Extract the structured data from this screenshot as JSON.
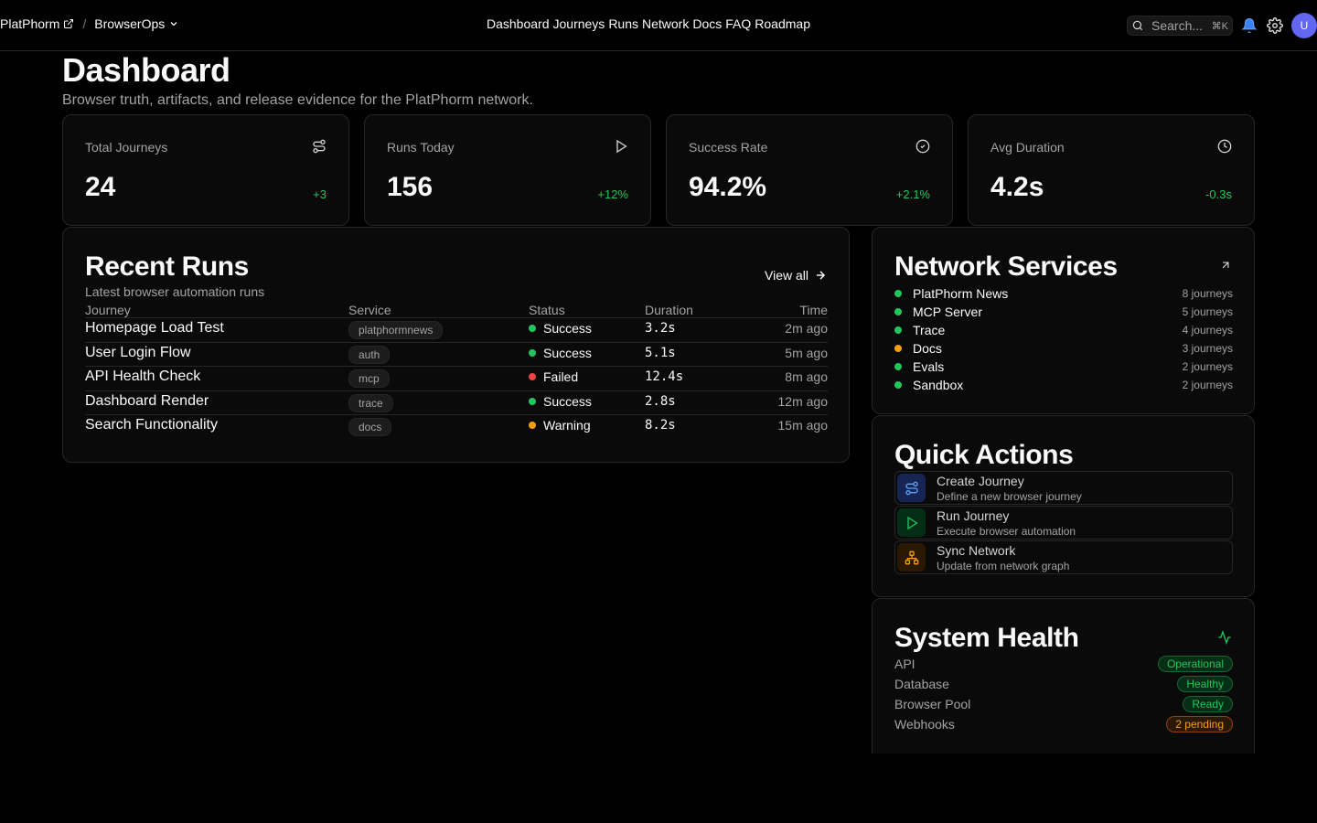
{
  "header": {
    "brand": "PlatPhorm",
    "separator": "/",
    "workspace": "BrowserOps",
    "nav": [
      "Dashboard",
      "Journeys",
      "Runs",
      "Network",
      "Docs",
      "FAQ",
      "Roadmap"
    ],
    "search_placeholder": "Search...",
    "search_shortcut": "⌘K",
    "avatar_initial": "U"
  },
  "page": {
    "title": "Dashboard",
    "subtitle": "Browser truth, artifacts, and release evidence for the PlatPhorm network."
  },
  "stats": [
    {
      "label": "Total Journeys",
      "value": "24",
      "delta": "+3",
      "icon": "route-icon"
    },
    {
      "label": "Runs Today",
      "value": "156",
      "delta": "+12%",
      "icon": "play-icon"
    },
    {
      "label": "Success Rate",
      "value": "94.2%",
      "delta": "+2.1%",
      "icon": "check-circle-icon"
    },
    {
      "label": "Avg Duration",
      "value": "4.2s",
      "delta": "-0.3s",
      "icon": "clock-icon"
    }
  ],
  "recent_runs": {
    "title": "Recent Runs",
    "subtitle": "Latest browser automation runs",
    "view_all": "View all",
    "columns": {
      "journey": "Journey",
      "service": "Service",
      "status": "Status",
      "duration": "Duration",
      "time": "Time"
    },
    "rows": [
      {
        "journey": "Homepage Load Test",
        "service": "platphormnews",
        "status": "Success",
        "status_color": "#22c55e",
        "duration": "3.2s",
        "time": "2m ago"
      },
      {
        "journey": "User Login Flow",
        "service": "auth",
        "status": "Success",
        "status_color": "#22c55e",
        "duration": "5.1s",
        "time": "5m ago"
      },
      {
        "journey": "API Health Check",
        "service": "mcp",
        "status": "Failed",
        "status_color": "#ef4444",
        "duration": "12.4s",
        "time": "8m ago"
      },
      {
        "journey": "Dashboard Render",
        "service": "trace",
        "status": "Success",
        "status_color": "#22c55e",
        "duration": "2.8s",
        "time": "12m ago"
      },
      {
        "journey": "Search Functionality",
        "service": "docs",
        "status": "Warning",
        "status_color": "#f59e0b",
        "duration": "8.2s",
        "time": "15m ago"
      }
    ]
  },
  "network_services": {
    "title": "Network Services",
    "items": [
      {
        "name": "PlatPhorm News",
        "count": "8 journeys",
        "color": "#22c55e"
      },
      {
        "name": "MCP Server",
        "count": "5 journeys",
        "color": "#22c55e"
      },
      {
        "name": "Trace",
        "count": "4 journeys",
        "color": "#22c55e"
      },
      {
        "name": "Docs",
        "count": "3 journeys",
        "color": "#f59e0b"
      },
      {
        "name": "Evals",
        "count": "2 journeys",
        "color": "#22c55e"
      },
      {
        "name": "Sandbox",
        "count": "2 journeys",
        "color": "#22c55e"
      }
    ]
  },
  "quick_actions": {
    "title": "Quick Actions",
    "items": [
      {
        "title": "Create Journey",
        "desc": "Define a new browser journey",
        "icon": "route-icon"
      },
      {
        "title": "Run Journey",
        "desc": "Execute browser automation",
        "icon": "play-icon"
      },
      {
        "title": "Sync Network",
        "desc": "Update from network graph",
        "icon": "network-icon"
      }
    ]
  },
  "system_health": {
    "title": "System Health",
    "items": [
      {
        "name": "API",
        "status": "Operational",
        "tone": "green"
      },
      {
        "name": "Database",
        "status": "Healthy",
        "tone": "green"
      },
      {
        "name": "Browser Pool",
        "status": "Ready",
        "tone": "green"
      },
      {
        "name": "Webhooks",
        "status": "2 pending",
        "tone": "amber"
      }
    ]
  }
}
